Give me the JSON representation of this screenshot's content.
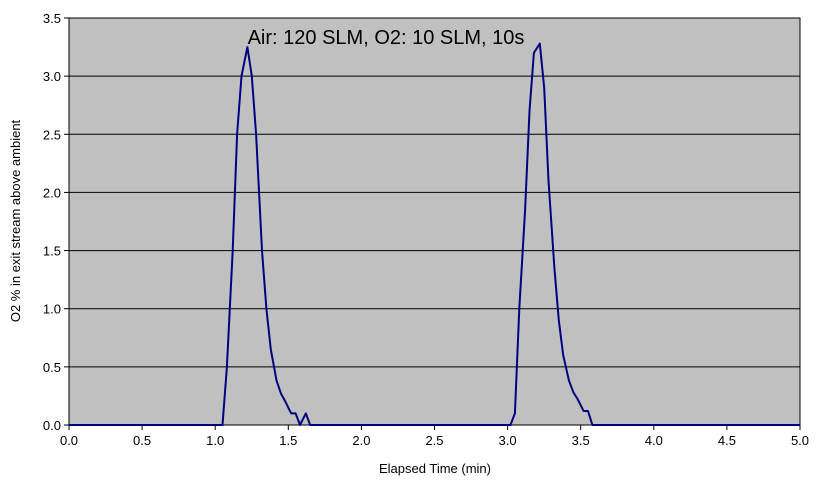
{
  "chart_data": {
    "type": "line",
    "title": "Air: 120 SLM, O2: 10 SLM, 10s",
    "xlabel": "Elapsed Time (min)",
    "ylabel": "O2 % in exit stream above ambient",
    "xlim": [
      0,
      5
    ],
    "ylim": [
      0,
      3.5
    ],
    "x_ticks": [
      "0.0",
      "0.5",
      "1.0",
      "1.5",
      "2.0",
      "2.5",
      "3.0",
      "3.5",
      "4.0",
      "4.5",
      "5.0"
    ],
    "y_ticks": [
      "0.0",
      "0.5",
      "1.0",
      "1.5",
      "2.0",
      "2.5",
      "3.0",
      "3.5"
    ],
    "grid": "horizontal",
    "legend": "none",
    "colors": {
      "plot_bg": "#c0c0c0",
      "line": "#000080",
      "grid": "#000000"
    },
    "series": [
      {
        "x": [
          0,
          1.0,
          1.05,
          1.08,
          1.12,
          1.15,
          1.18,
          1.22,
          1.25,
          1.28,
          1.32,
          1.35,
          1.38,
          1.42,
          1.45,
          1.48,
          1.52,
          1.55,
          1.58,
          1.62,
          1.65,
          1.68,
          1.72,
          1.75,
          2.95,
          3.02,
          3.05,
          3.08,
          3.12,
          3.15,
          3.18,
          3.22,
          3.25,
          3.28,
          3.32,
          3.35,
          3.38,
          3.42,
          3.45,
          3.48,
          3.52,
          3.55,
          3.58,
          3.62,
          3.65,
          3.7,
          5.0
        ],
        "y": [
          0,
          0,
          0,
          0.5,
          1.5,
          2.5,
          3.0,
          3.25,
          3.0,
          2.5,
          1.5,
          1.0,
          0.65,
          0.38,
          0.27,
          0.2,
          0.1,
          0.1,
          0,
          0.1,
          0,
          0,
          0,
          0,
          0,
          0,
          0.1,
          1.0,
          1.85,
          2.7,
          3.2,
          3.28,
          2.9,
          2.1,
          1.35,
          0.9,
          0.6,
          0.38,
          0.28,
          0.22,
          0.12,
          0.12,
          0,
          0,
          0,
          0,
          0
        ]
      }
    ]
  }
}
